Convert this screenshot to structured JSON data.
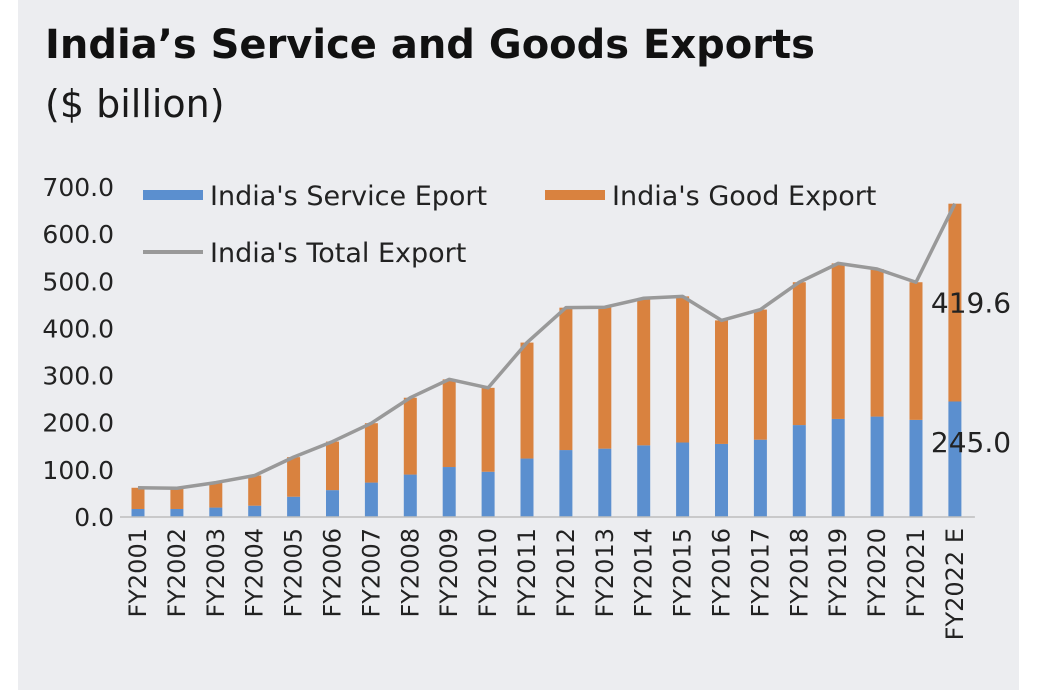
{
  "title": "India’s Service and Goods Exports",
  "subtitle": "($ billion)",
  "colors": {
    "service": "#5b8fcf",
    "goods": "#d9823f",
    "total": "#999999",
    "background": "#ecedf0"
  },
  "chart_data": {
    "type": "bar",
    "stacked": true,
    "categories": [
      "FY2001",
      "FY2002",
      "FY2003",
      "FY2004",
      "FY2005",
      "FY2006",
      "FY2007",
      "FY2008",
      "FY2009",
      "FY2010",
      "FY2011",
      "FY2012",
      "FY2013",
      "FY2014",
      "FY2015",
      "FY2016",
      "FY2017",
      "FY2018",
      "FY2019",
      "FY2020",
      "FY2021",
      "FY2022 E"
    ],
    "series": [
      {
        "name": "India's Service Eport",
        "kind": "bar",
        "values": [
          17,
          17,
          20,
          24,
          43,
          57,
          73,
          90,
          106,
          96,
          124,
          142,
          145,
          152,
          158,
          155,
          164,
          195,
          208,
          213,
          206,
          245.0
        ]
      },
      {
        "name": "India's Good Export",
        "kind": "bar",
        "values": [
          45,
          44,
          53,
          64,
          84,
          103,
          126,
          163,
          186,
          178,
          246,
          302,
          300,
          312,
          310,
          262,
          276,
          303,
          330,
          313,
          292,
          419.6
        ]
      },
      {
        "name": "India's Total Export",
        "kind": "line",
        "values": [
          62,
          61,
          73,
          88,
          127,
          160,
          199,
          253,
          292,
          274,
          370,
          444,
          445,
          464,
          468,
          417,
          440,
          498,
          538,
          526,
          498,
          664.6
        ]
      }
    ],
    "data_labels": [
      {
        "series": "India's Good Export",
        "category": "FY2022 E",
        "text": "419.6"
      },
      {
        "series": "India's Service Eport",
        "category": "FY2022 E",
        "text": "245.0"
      }
    ],
    "yticks": [
      "0.0",
      "100.0",
      "200.0",
      "300.0",
      "400.0",
      "500.0",
      "600.0",
      "700.0"
    ],
    "ylim": [
      0,
      700
    ],
    "grid": false,
    "legend_position": "top-left inside plot"
  }
}
